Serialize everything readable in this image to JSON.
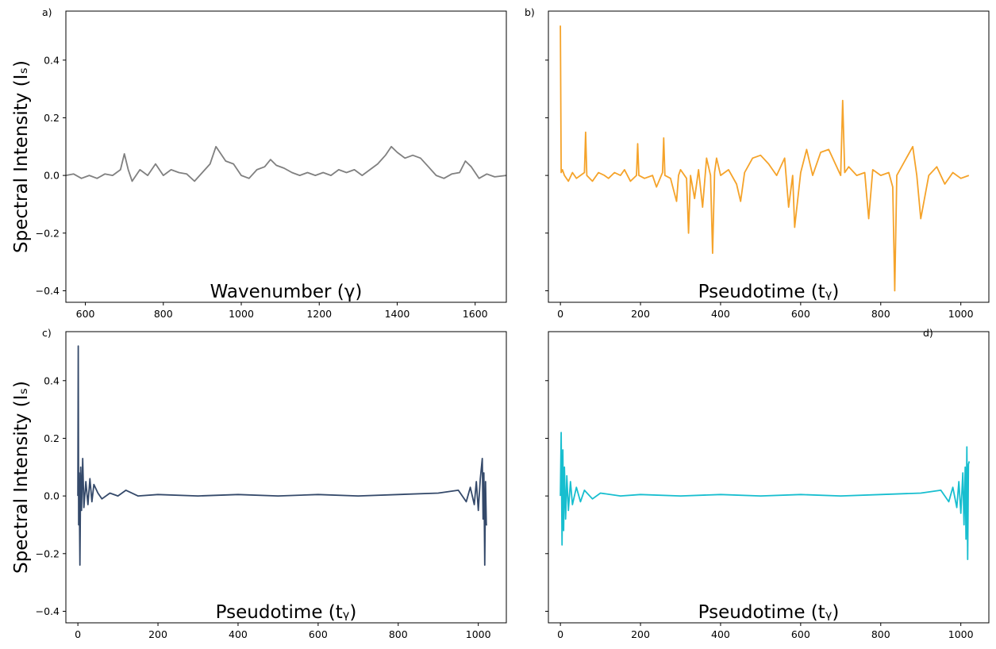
{
  "figure": {
    "ylabel": "Spectral Intensity (Iₛ)"
  },
  "chart_data": [
    {
      "panel": "a)",
      "type": "line",
      "xlabel": "Wavenumber (γ)",
      "ylabel": "Spectral Intensity (Iₛ)",
      "color": "#808080",
      "xlim": [
        550,
        1680
      ],
      "ylim": [
        -0.44,
        0.57
      ],
      "xticks": [
        600,
        800,
        1000,
        1200,
        1400,
        1600
      ],
      "yticks": [
        -0.4,
        -0.2,
        0.0,
        0.2,
        0.4
      ],
      "yticklabels": [
        "−0.4",
        "−0.2",
        "0.0",
        "0.2",
        "0.4"
      ],
      "series": [
        {
          "x": [
            550,
            570,
            590,
            610,
            630,
            650,
            670,
            690,
            700,
            710,
            720,
            740,
            760,
            780,
            800,
            820,
            840,
            860,
            880,
            900,
            920,
            935,
            945,
            960,
            980,
            1000,
            1020,
            1040,
            1060,
            1075,
            1090,
            1110,
            1130,
            1150,
            1170,
            1190,
            1210,
            1230,
            1250,
            1270,
            1290,
            1310,
            1330,
            1350,
            1370,
            1385,
            1400,
            1420,
            1440,
            1460,
            1480,
            1500,
            1520,
            1540,
            1560,
            1575,
            1590,
            1610,
            1630,
            1650,
            1680
          ],
          "y": [
            0.0,
            0.005,
            -0.01,
            0.0,
            -0.01,
            0.005,
            0.0,
            0.02,
            0.075,
            0.02,
            -0.02,
            0.02,
            0.0,
            0.04,
            0.0,
            0.02,
            0.01,
            0.005,
            -0.02,
            0.01,
            0.04,
            0.1,
            0.08,
            0.05,
            0.04,
            0.0,
            -0.01,
            0.02,
            0.03,
            0.055,
            0.035,
            0.025,
            0.01,
            0.0,
            0.01,
            0.0,
            0.01,
            0.0,
            0.02,
            0.01,
            0.02,
            0.0,
            0.02,
            0.04,
            0.07,
            0.1,
            0.08,
            0.06,
            0.07,
            0.06,
            0.03,
            0.0,
            -0.01,
            0.005,
            0.01,
            0.05,
            0.03,
            -0.01,
            0.005,
            -0.005,
            0.0
          ]
        }
      ]
    },
    {
      "panel": "b)",
      "type": "line",
      "xlabel": "Pseudotime (tᵧ)",
      "color": "#f5a32a",
      "xlim": [
        -30,
        1070
      ],
      "ylim": [
        -0.44,
        0.57
      ],
      "xticks": [
        0,
        200,
        400,
        600,
        800,
        1000
      ],
      "series": [
        {
          "x": [
            0,
            2,
            5,
            10,
            20,
            30,
            40,
            50,
            60,
            63,
            66,
            80,
            95,
            110,
            120,
            135,
            150,
            160,
            175,
            190,
            193,
            196,
            210,
            230,
            240,
            255,
            258,
            261,
            275,
            290,
            295,
            300,
            315,
            320,
            325,
            335,
            345,
            355,
            365,
            375,
            380,
            385,
            390,
            400,
            420,
            440,
            450,
            460,
            480,
            500,
            520,
            540,
            560,
            570,
            580,
            585,
            600,
            615,
            630,
            650,
            670,
            700,
            705,
            710,
            720,
            740,
            760,
            770,
            780,
            800,
            820,
            830,
            835,
            840,
            860,
            880,
            890,
            900,
            920,
            940,
            960,
            980,
            1000,
            1020
          ],
          "y": [
            0.52,
            0.01,
            0.02,
            0.0,
            -0.02,
            0.01,
            -0.01,
            0.0,
            0.01,
            0.15,
            0.0,
            -0.02,
            0.01,
            0.0,
            -0.01,
            0.01,
            0.0,
            0.02,
            -0.02,
            0.0,
            0.11,
            0.0,
            -0.01,
            0.0,
            -0.04,
            0.01,
            0.13,
            0.0,
            -0.01,
            -0.09,
            0.0,
            0.02,
            -0.01,
            -0.2,
            0.0,
            -0.08,
            0.02,
            -0.11,
            0.06,
            0.0,
            -0.27,
            0.01,
            0.06,
            0.0,
            0.02,
            -0.03,
            -0.09,
            0.01,
            0.06,
            0.07,
            0.04,
            0.0,
            0.06,
            -0.11,
            0.0,
            -0.18,
            0.01,
            0.09,
            0.0,
            0.08,
            0.09,
            0.0,
            0.26,
            0.01,
            0.03,
            0.0,
            0.01,
            -0.15,
            0.02,
            0.0,
            0.01,
            -0.04,
            -0.4,
            0.0,
            0.05,
            0.1,
            0.0,
            -0.15,
            0.0,
            0.03,
            -0.03,
            0.01,
            -0.01,
            0.0
          ]
        }
      ]
    },
    {
      "panel": "c)",
      "type": "line",
      "xlabel": "Pseudotime (tᵧ)",
      "ylabel": "Spectral Intensity (Iₛ)",
      "color": "#34496a",
      "xlim": [
        -30,
        1070
      ],
      "ylim": [
        -0.44,
        0.57
      ],
      "xticks": [
        0,
        200,
        400,
        600,
        800,
        1000
      ],
      "yticks": [
        -0.4,
        -0.2,
        0.0,
        0.2,
        0.4
      ],
      "yticklabels": [
        "−0.4",
        "−0.2",
        "0.0",
        "0.2",
        "0.4"
      ],
      "series": [
        {
          "x": [
            0,
            1,
            2,
            3,
            5,
            7,
            9,
            12,
            15,
            20,
            25,
            30,
            35,
            40,
            50,
            60,
            80,
            100,
            120,
            150,
            200,
            300,
            400,
            500,
            600,
            700,
            800,
            900,
            950,
            970,
            980,
            990,
            995,
            1000,
            1005,
            1010,
            1012,
            1014,
            1016,
            1018,
            1020,
            1022
          ],
          "y": [
            0.0,
            0.52,
            -0.1,
            0.08,
            -0.24,
            0.1,
            -0.05,
            0.13,
            -0.04,
            0.05,
            -0.03,
            0.06,
            -0.02,
            0.04,
            0.01,
            -0.01,
            0.01,
            0.0,
            0.02,
            0.0,
            0.005,
            0.0,
            0.005,
            0.0,
            0.005,
            0.0,
            0.005,
            0.01,
            0.02,
            -0.02,
            0.03,
            -0.03,
            0.05,
            -0.05,
            0.06,
            0.13,
            -0.08,
            0.08,
            -0.24,
            0.05,
            -0.1,
            -0.1
          ]
        }
      ]
    },
    {
      "panel": "d)",
      "type": "line",
      "xlabel": "Pseudotime (tᵧ)",
      "color": "#17becf",
      "xlim": [
        -30,
        1070
      ],
      "ylim": [
        -0.44,
        0.57
      ],
      "xticks": [
        0,
        200,
        400,
        600,
        800,
        1000
      ],
      "series": [
        {
          "x": [
            0,
            2,
            4,
            6,
            8,
            10,
            13,
            16,
            20,
            25,
            30,
            40,
            50,
            60,
            80,
            100,
            150,
            200,
            300,
            400,
            500,
            600,
            700,
            800,
            900,
            950,
            970,
            980,
            990,
            995,
            1000,
            1005,
            1008,
            1011,
            1013,
            1015,
            1017,
            1019,
            1021
          ],
          "y": [
            0.0,
            0.22,
            -0.17,
            0.16,
            -0.12,
            0.1,
            -0.08,
            0.07,
            -0.05,
            0.05,
            -0.03,
            0.03,
            -0.02,
            0.02,
            -0.01,
            0.01,
            0.0,
            0.005,
            0.0,
            0.005,
            0.0,
            0.005,
            0.0,
            0.005,
            0.01,
            0.02,
            -0.02,
            0.03,
            -0.04,
            0.05,
            -0.06,
            0.08,
            -0.1,
            0.1,
            -0.15,
            0.17,
            -0.22,
            0.11,
            0.12
          ]
        }
      ]
    }
  ]
}
